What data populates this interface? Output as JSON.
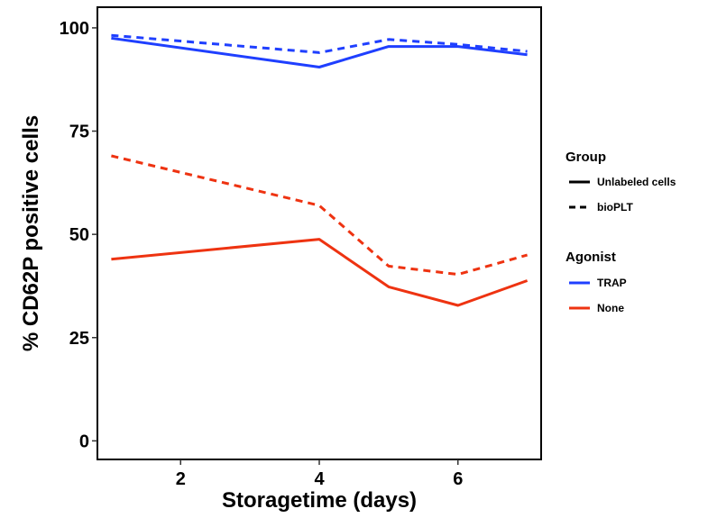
{
  "chart_data": {
    "type": "line",
    "xlabel": "Storagetime (days)",
    "ylabel": "% CD62P positive cells",
    "xlim": [
      0.8,
      7.2
    ],
    "ylim": [
      -4.5,
      105
    ],
    "x_ticks": [
      2,
      4,
      6
    ],
    "y_ticks": [
      0,
      25,
      50,
      75,
      100
    ],
    "grid": false,
    "legend_position": "right",
    "legends": [
      {
        "title": "Group",
        "entries": [
          {
            "label": "Unlabeled cells",
            "linestyle": "solid"
          },
          {
            "label": "bioPLT",
            "linestyle": "dashed"
          }
        ]
      },
      {
        "title": "Agonist",
        "entries": [
          {
            "label": "TRAP",
            "color": "#1f3fff"
          },
          {
            "label": "None",
            "color": "#ee3311"
          }
        ]
      }
    ],
    "series": [
      {
        "agonist": "TRAP",
        "group": "Unlabeled cells",
        "color": "#1f3fff",
        "linestyle": "solid",
        "x": [
          1,
          4,
          5,
          6,
          7
        ],
        "y": [
          97.5,
          90.5,
          95.5,
          95.5,
          93.5
        ]
      },
      {
        "agonist": "TRAP",
        "group": "bioPLT",
        "color": "#1f3fff",
        "linestyle": "dashed",
        "x": [
          1,
          4,
          5,
          6,
          7
        ],
        "y": [
          98.2,
          94.0,
          97.2,
          96.0,
          94.3
        ]
      },
      {
        "agonist": "None",
        "group": "Unlabeled cells",
        "color": "#ee3311",
        "linestyle": "solid",
        "x": [
          1,
          4,
          5,
          6,
          7
        ],
        "y": [
          44.0,
          48.8,
          37.3,
          32.8,
          38.8
        ]
      },
      {
        "agonist": "None",
        "group": "bioPLT",
        "color": "#ee3311",
        "linestyle": "dashed",
        "x": [
          1,
          4,
          5,
          6,
          7
        ],
        "y": [
          69.0,
          57.0,
          42.3,
          40.3,
          45.0
        ]
      }
    ]
  }
}
